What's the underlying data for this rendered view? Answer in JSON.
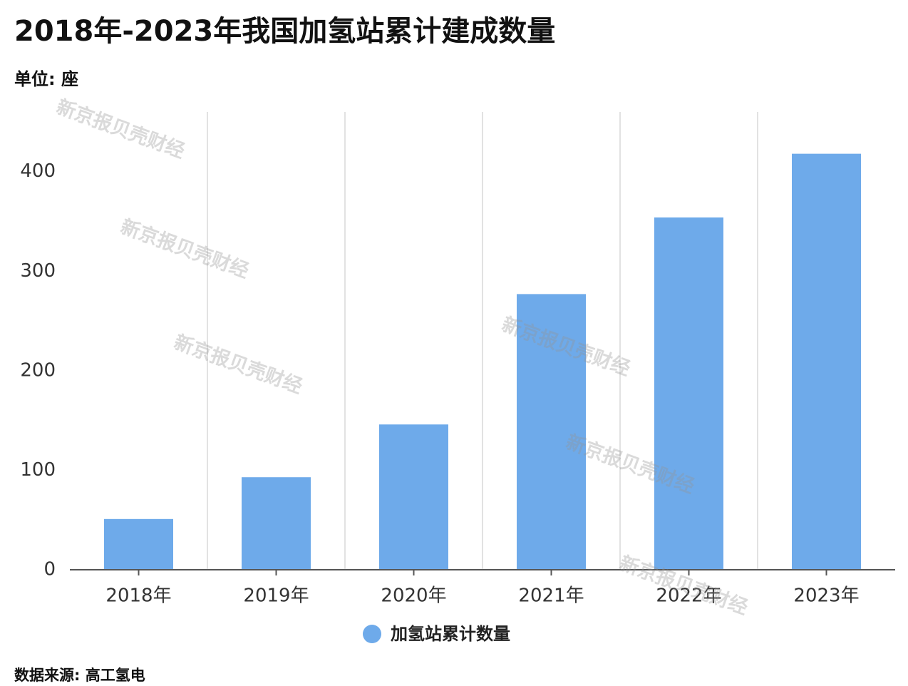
{
  "chart_data": {
    "type": "bar",
    "title": "2018年-2023年我国加氢站累计建成数量",
    "subtitle": "单位: 座",
    "categories": [
      "2018年",
      "2019年",
      "2020年",
      "2021年",
      "2022年",
      "2023年"
    ],
    "series": [
      {
        "name": "加氢站累计数量",
        "color": "#6eaaea",
        "values": [
          51,
          93,
          146,
          277,
          354,
          418
        ]
      }
    ],
    "ylim": [
      0,
      460
    ],
    "yticks": [
      0,
      100,
      200,
      300,
      400
    ],
    "legend": "bottom",
    "source": "数据来源: 高工氢电",
    "watermark": "新京报贝壳财经"
  }
}
